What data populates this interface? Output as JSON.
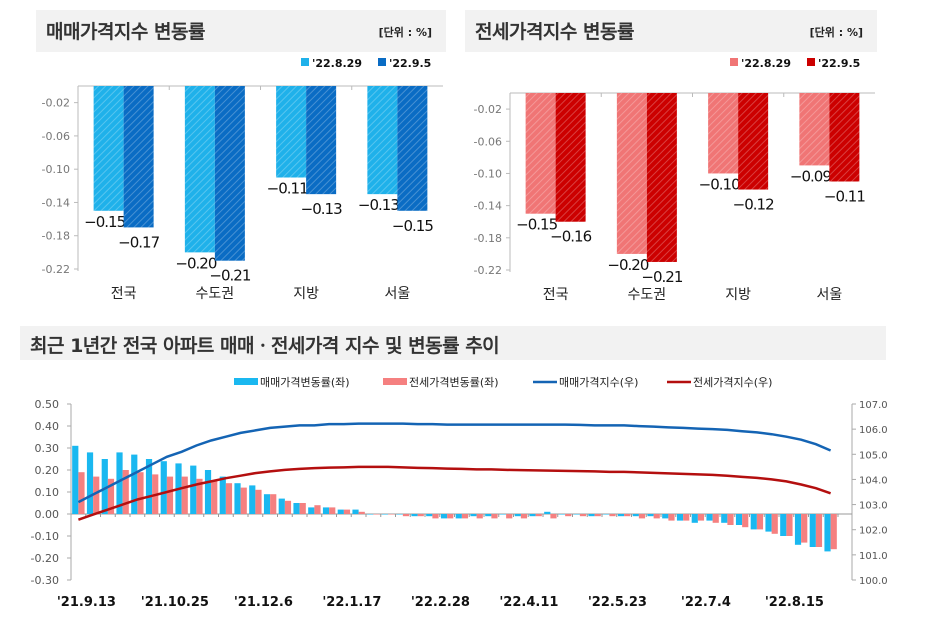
{
  "chart_data": [
    {
      "type": "bar",
      "title": "매매가격지수 변동률",
      "unit": "[단위 : %]",
      "categories": [
        "전국",
        "수도권",
        "지방",
        "서울"
      ],
      "series": [
        {
          "name": "'22.8.29",
          "values": [
            -0.15,
            -0.2,
            -0.11,
            -0.13
          ],
          "color": "#1fb1ea"
        },
        {
          "name": "'22.9.5",
          "values": [
            -0.17,
            -0.21,
            -0.13,
            -0.15
          ],
          "color": "#0a6cc4"
        }
      ],
      "yticks": [
        "-0.02",
        "-0.06",
        "-0.10",
        "-0.14",
        "-0.18",
        "-0.22"
      ],
      "ylim": [
        -0.22,
        0
      ],
      "legend": "top-right"
    },
    {
      "type": "bar",
      "title": "전세가격지수 변동률",
      "unit": "[단위 : %]",
      "categories": [
        "전국",
        "수도권",
        "지방",
        "서울"
      ],
      "series": [
        {
          "name": "'22.8.29",
          "values": [
            -0.15,
            -0.2,
            -0.1,
            -0.09
          ],
          "color": "#f07575"
        },
        {
          "name": "'22.9.5",
          "values": [
            -0.16,
            -0.21,
            -0.12,
            -0.11
          ],
          "color": "#cc0000"
        }
      ],
      "yticks": [
        "-0.02",
        "-0.06",
        "-0.10",
        "-0.14",
        "-0.18",
        "-0.22"
      ],
      "ylim": [
        -0.22,
        0
      ],
      "legend": "top-right"
    },
    {
      "type": "bar+line",
      "title": "최근 1년간 전국 아파트 매매ㆍ전세가격 지수 및 변동률 추이",
      "xtick_labels": [
        "'21.9.13",
        "'21.10.25",
        "'21.12.6",
        "'22.1.17",
        "'22.2.28",
        "'22.4.11",
        "'22.5.23",
        "'22.7.4",
        "'22.8.15"
      ],
      "y_left_ticks": [
        "0.50",
        "0.40",
        "0.30",
        "0.20",
        "0.10",
        "0.00",
        "-0.10",
        "-0.20",
        "-0.30"
      ],
      "y_left_lim": [
        -0.3,
        0.5
      ],
      "y_right_ticks": [
        "107.0",
        "106.0",
        "105.0",
        "104.0",
        "103.0",
        "102.0",
        "101.0",
        "100.0"
      ],
      "y_right_lim": [
        100.0,
        107.0
      ],
      "legend": "top",
      "series": [
        {
          "name": "매매가격변동률(좌)",
          "kind": "bar",
          "axis": "left",
          "color": "#1ab8f0",
          "values": [
            0.31,
            0.28,
            0.25,
            0.28,
            0.27,
            0.25,
            0.24,
            0.23,
            0.22,
            0.2,
            0.17,
            0.14,
            0.13,
            0.09,
            0.07,
            0.05,
            0.03,
            0.03,
            0.02,
            0.02,
            0.0,
            0.0,
            0.0,
            -0.01,
            -0.01,
            -0.02,
            -0.02,
            -0.01,
            -0.01,
            0.0,
            -0.01,
            -0.01,
            0.01,
            0.0,
            0.0,
            -0.01,
            0.0,
            -0.01,
            -0.01,
            -0.01,
            -0.02,
            -0.03,
            -0.04,
            -0.03,
            -0.04,
            -0.05,
            -0.07,
            -0.08,
            -0.1,
            -0.14,
            -0.15,
            -0.17
          ]
        },
        {
          "name": "전세가격변동률(좌)",
          "kind": "bar",
          "axis": "left",
          "color": "#f58080",
          "values": [
            0.19,
            0.17,
            0.16,
            0.2,
            0.19,
            0.18,
            0.17,
            0.17,
            0.16,
            0.15,
            0.14,
            0.12,
            0.11,
            0.09,
            0.06,
            0.05,
            0.04,
            0.03,
            0.02,
            0.01,
            0.0,
            0.0,
            -0.01,
            -0.01,
            -0.02,
            -0.02,
            -0.02,
            -0.02,
            -0.02,
            -0.02,
            -0.02,
            -0.01,
            -0.02,
            -0.01,
            -0.01,
            -0.01,
            -0.01,
            -0.01,
            -0.02,
            -0.02,
            -0.03,
            -0.03,
            -0.03,
            -0.04,
            -0.05,
            -0.06,
            -0.07,
            -0.09,
            -0.1,
            -0.13,
            -0.15,
            -0.16
          ]
        },
        {
          "name": "매매가격지수(우)",
          "kind": "line",
          "axis": "right",
          "color": "#1464b4",
          "values": [
            103.1,
            103.4,
            103.7,
            104.0,
            104.3,
            104.6,
            104.9,
            105.1,
            105.35,
            105.55,
            105.7,
            105.85,
            105.95,
            106.05,
            106.1,
            106.15,
            106.15,
            106.2,
            106.2,
            106.22,
            106.22,
            106.22,
            106.22,
            106.2,
            106.2,
            106.18,
            106.18,
            106.18,
            106.18,
            106.18,
            106.18,
            106.18,
            106.18,
            106.18,
            106.17,
            106.15,
            106.15,
            106.15,
            106.12,
            106.1,
            106.07,
            106.05,
            106.02,
            106.0,
            105.97,
            105.92,
            105.87,
            105.8,
            105.7,
            105.58,
            105.4,
            105.15
          ]
        },
        {
          "name": "전세가격지수(우)",
          "kind": "line",
          "axis": "right",
          "color": "#b40f0f",
          "values": [
            102.4,
            102.6,
            102.8,
            103.0,
            103.2,
            103.35,
            103.5,
            103.65,
            103.8,
            103.92,
            104.05,
            104.15,
            104.25,
            104.32,
            104.38,
            104.42,
            104.45,
            104.47,
            104.48,
            104.5,
            104.5,
            104.5,
            104.48,
            104.46,
            104.45,
            104.43,
            104.42,
            104.4,
            104.4,
            104.38,
            104.37,
            104.36,
            104.35,
            104.34,
            104.33,
            104.32,
            104.3,
            104.3,
            104.28,
            104.26,
            104.24,
            104.22,
            104.2,
            104.18,
            104.15,
            104.1,
            104.06,
            104.0,
            103.92,
            103.8,
            103.65,
            103.45
          ]
        }
      ]
    }
  ]
}
